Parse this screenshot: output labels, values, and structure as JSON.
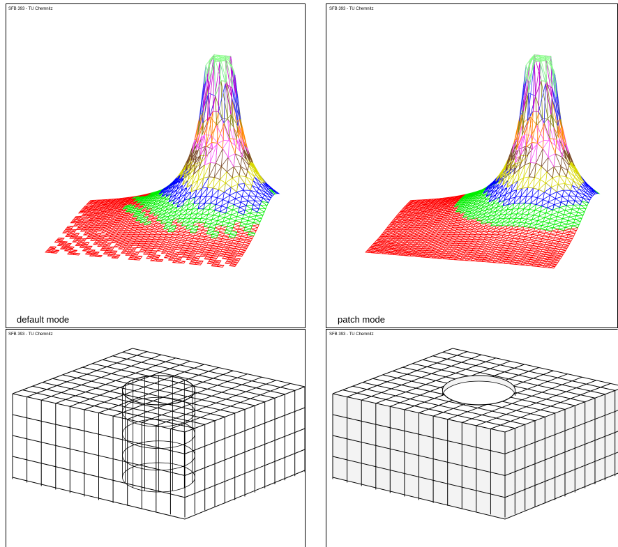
{
  "panels": [
    {
      "credit": "SFB 393 - TU Chemnitz",
      "caption": "default mode"
    },
    {
      "credit": "SFB 393 - TU Chemnitz",
      "caption": "patch mode"
    },
    {
      "credit": "SFB 393 - TU Chemnitz"
    },
    {
      "credit": "SFB 393 - TU Chemnitz"
    }
  ]
}
